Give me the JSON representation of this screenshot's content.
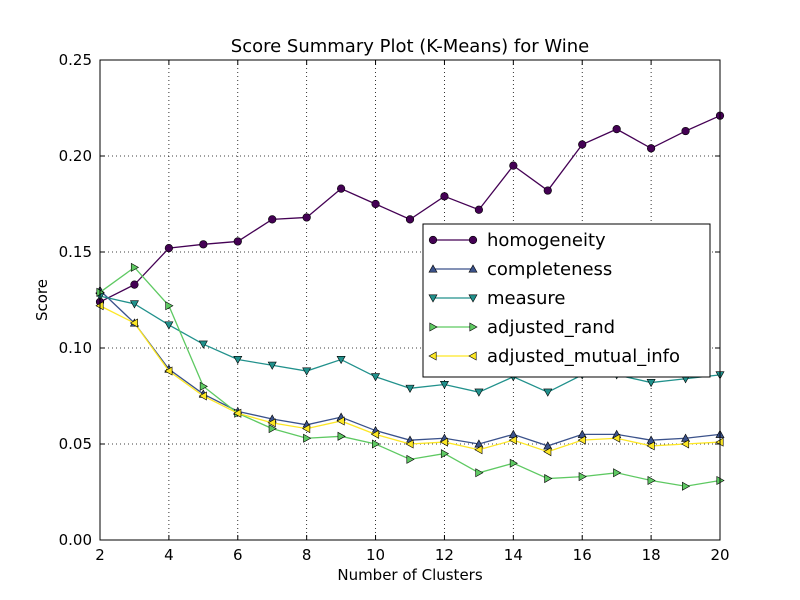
{
  "chart_data": {
    "type": "line",
    "title": "Score Summary Plot (K-Means) for Wine",
    "xlabel": "Number of Clusters",
    "ylabel": "Score",
    "xlim": [
      2,
      20
    ],
    "ylim": [
      0.0,
      0.25
    ],
    "xticks": [
      2,
      4,
      6,
      8,
      10,
      12,
      14,
      16,
      18,
      20
    ],
    "yticks": [
      "0.00",
      "0.05",
      "0.10",
      "0.15",
      "0.20",
      "0.25"
    ],
    "ytick_values": [
      0.0,
      0.05,
      0.1,
      0.15,
      0.2,
      0.25
    ],
    "grid": true,
    "legend_position": "center-right",
    "x": [
      2,
      3,
      4,
      5,
      6,
      7,
      8,
      9,
      10,
      11,
      12,
      13,
      14,
      15,
      16,
      17,
      18,
      19,
      20
    ],
    "series": [
      {
        "name": "homogeneity",
        "marker": "circle",
        "color": "#440154",
        "values": [
          0.124,
          0.133,
          0.152,
          0.154,
          0.1555,
          0.167,
          0.168,
          0.183,
          0.175,
          0.167,
          0.179,
          0.172,
          0.195,
          0.182,
          0.206,
          0.214,
          0.204,
          0.213,
          0.221
        ]
      },
      {
        "name": "completeness",
        "marker": "triangle-up",
        "color": "#3b528b",
        "values": [
          0.13,
          0.113,
          0.089,
          0.076,
          0.067,
          0.063,
          0.06,
          0.064,
          0.057,
          0.052,
          0.053,
          0.05,
          0.055,
          0.049,
          0.055,
          0.055,
          0.052,
          0.053,
          0.055
        ]
      },
      {
        "name": "measure",
        "marker": "triangle-down",
        "color": "#21918c",
        "values": [
          0.127,
          0.123,
          0.112,
          0.102,
          0.094,
          0.091,
          0.088,
          0.094,
          0.085,
          0.079,
          0.081,
          0.077,
          0.085,
          0.077,
          0.086,
          0.086,
          0.082,
          0.084,
          0.086
        ]
      },
      {
        "name": "adjusted_rand",
        "marker": "triangle-right",
        "color": "#5ec962",
        "values": [
          0.129,
          0.142,
          0.122,
          0.08,
          0.066,
          0.058,
          0.053,
          0.054,
          0.05,
          0.042,
          0.045,
          0.035,
          0.04,
          0.032,
          0.033,
          0.035,
          0.031,
          0.028,
          0.031
        ]
      },
      {
        "name": "adjusted_mutual_info",
        "marker": "triangle-left",
        "color": "#fde725",
        "values": [
          0.122,
          0.113,
          0.088,
          0.075,
          0.066,
          0.061,
          0.058,
          0.062,
          0.055,
          0.05,
          0.051,
          0.047,
          0.052,
          0.046,
          0.052,
          0.053,
          0.049,
          0.05,
          0.051
        ]
      }
    ]
  }
}
